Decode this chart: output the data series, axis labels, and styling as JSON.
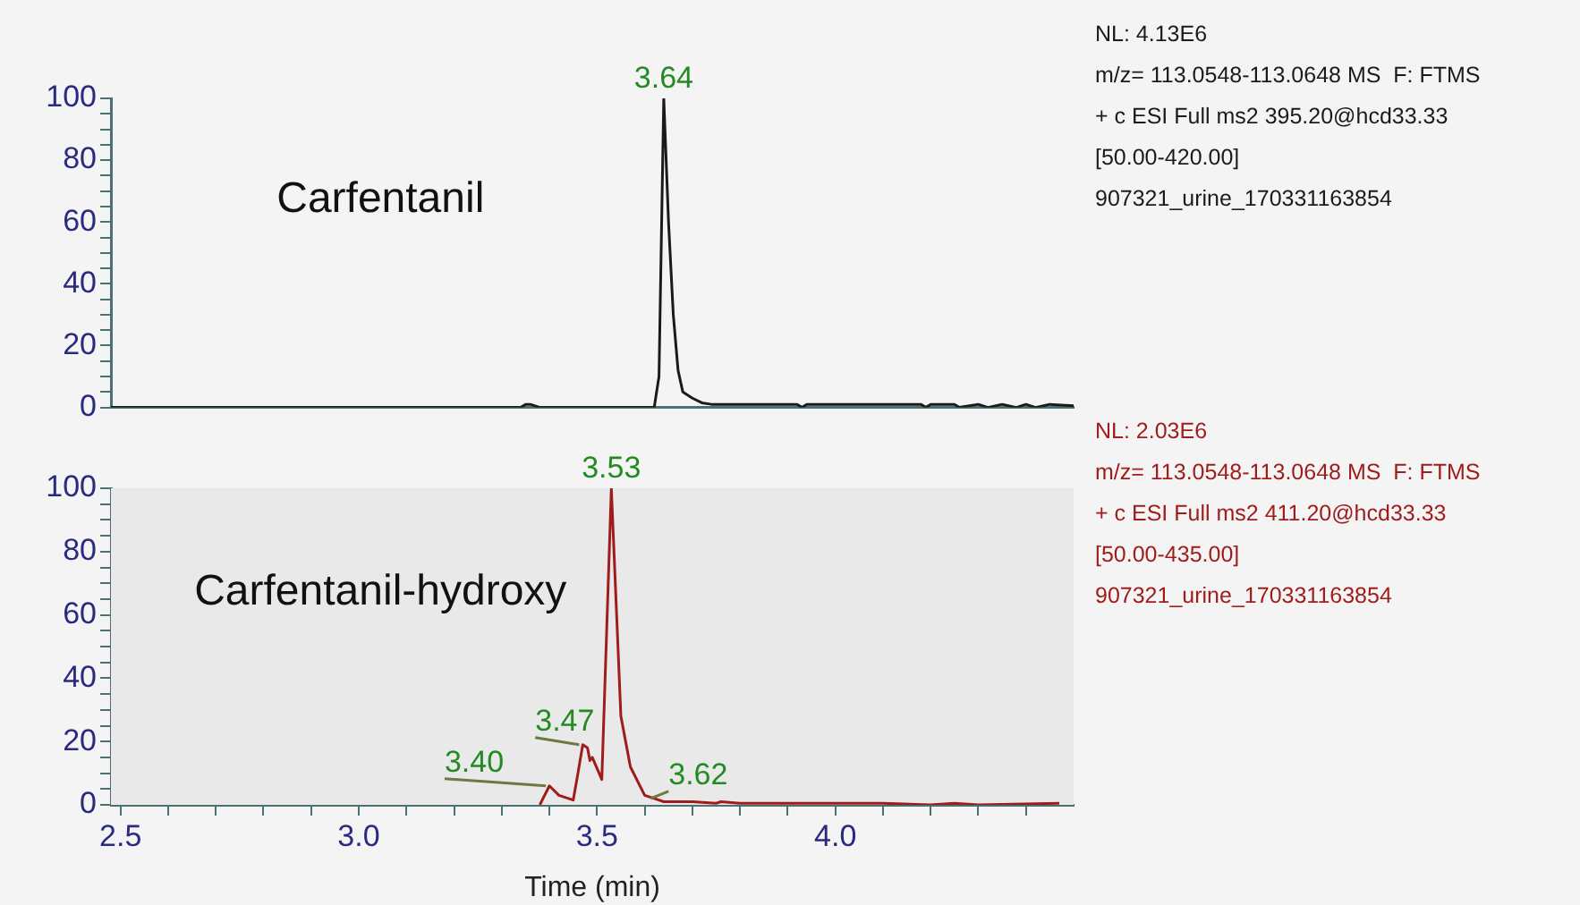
{
  "chart_data": [
    {
      "type": "line",
      "xlim": [
        2.48,
        4.5
      ],
      "ylim": [
        0,
        100
      ],
      "yticks": [
        0,
        {
          "value": 5,
          "label": null
        },
        {
          "value": 10,
          "label": null
        },
        {
          "value": 15,
          "label": null
        },
        20,
        {
          "value": 25,
          "label": null
        },
        {
          "value": 30,
          "label": null
        },
        {
          "value": 35,
          "label": null
        },
        40,
        {
          "value": 45,
          "label": null
        },
        {
          "value": 50,
          "label": null
        },
        {
          "value": 55,
          "label": null
        },
        60,
        {
          "value": 65,
          "label": null
        },
        {
          "value": 70,
          "label": null
        },
        {
          "value": 75,
          "label": null
        },
        80,
        {
          "value": 85,
          "label": null
        },
        {
          "value": 90,
          "label": null
        },
        {
          "value": 95,
          "label": null
        },
        100
      ],
      "tick_labels": "y",
      "grid": false,
      "legend": false,
      "marker": "none",
      "series": [
        {
          "name": "Carfentanil",
          "color": "#1a1a1a",
          "x": [
            2.48,
            3.34,
            3.35,
            3.36,
            3.37,
            3.38,
            3.62,
            3.63,
            3.64,
            3.65,
            3.66,
            3.67,
            3.68,
            3.7,
            3.72,
            3.74,
            3.92,
            3.93,
            3.94,
            4.18,
            4.19,
            4.2,
            4.25,
            4.26,
            4.3,
            4.32,
            4.35,
            4.38,
            4.4,
            4.42,
            4.45,
            4.5
          ],
          "values": [
            0,
            0,
            1,
            1,
            0.5,
            0,
            0,
            10,
            100,
            60,
            30,
            12,
            5,
            3,
            1.5,
            1,
            1,
            0,
            1,
            1,
            0,
            1,
            1,
            0,
            1,
            0,
            1,
            0,
            1,
            0,
            1,
            0.5
          ]
        }
      ],
      "annotations": [
        {
          "text": "3.64",
          "x": 3.64,
          "y": 100
        },
        "NL: 4.13E6",
        "m/z= 113.0548-113.0648 MS  F: FTMS",
        "+ c ESI Full ms2 395.20@hcd33.33",
        "[50.00-420.00]",
        "907321_urine_170331163854"
      ]
    },
    {
      "type": "line",
      "xlabel": "Time (min)",
      "xlim": [
        2.48,
        4.5
      ],
      "xticks": [
        2.5,
        {
          "value": 2.6,
          "label": null
        },
        {
          "value": 2.7,
          "label": null
        },
        {
          "value": 2.8,
          "label": null
        },
        {
          "value": 2.9,
          "label": null
        },
        {
          "value": 3.0,
          "label": "3.0"
        },
        {
          "value": 3.1,
          "label": null
        },
        {
          "value": 3.2,
          "label": null
        },
        {
          "value": 3.3,
          "label": null
        },
        {
          "value": 3.4,
          "label": null
        },
        3.5,
        {
          "value": 3.6,
          "label": null
        },
        {
          "value": 3.7,
          "label": null
        },
        {
          "value": 3.8,
          "label": null
        },
        {
          "value": 3.9,
          "label": null
        },
        {
          "value": 4.0,
          "label": "4.0"
        },
        {
          "value": 4.1,
          "label": null
        },
        {
          "value": 4.2,
          "label": null
        },
        {
          "value": 4.3,
          "label": null
        },
        {
          "value": 4.4,
          "label": null
        }
      ],
      "ylim": [
        0,
        100
      ],
      "yticks": [
        0,
        {
          "value": 5,
          "label": null
        },
        {
          "value": 10,
          "label": null
        },
        {
          "value": 15,
          "label": null
        },
        20,
        {
          "value": 25,
          "label": null
        },
        {
          "value": 30,
          "label": null
        },
        {
          "value": 35,
          "label": null
        },
        40,
        {
          "value": 45,
          "label": null
        },
        {
          "value": 50,
          "label": null
        },
        {
          "value": 55,
          "label": null
        },
        60,
        {
          "value": 65,
          "label": null
        },
        {
          "value": 70,
          "label": null
        },
        {
          "value": 75,
          "label": null
        },
        80,
        {
          "value": 85,
          "label": null
        },
        {
          "value": 90,
          "label": null
        },
        {
          "value": 95,
          "label": null
        },
        100
      ],
      "grid": false,
      "legend": false,
      "marker": "none",
      "series": [
        {
          "name": "Carfentanil-hydroxy",
          "color": "#a01c1c",
          "x": [
            3.38,
            3.4,
            3.42,
            3.45,
            3.46,
            3.47,
            3.48,
            3.485,
            3.49,
            3.51,
            3.53,
            3.55,
            3.57,
            3.6,
            3.62,
            3.64,
            3.7,
            3.75,
            3.76,
            3.8,
            3.9,
            3.95,
            4.0,
            4.1,
            4.2,
            4.25,
            4.3,
            4.47
          ],
          "values": [
            0,
            6,
            3,
            1.5,
            10,
            19,
            18,
            14,
            15,
            8,
            100,
            28,
            12,
            3,
            2,
            1,
            1,
            0.5,
            1,
            0.5,
            0.5,
            0.5,
            0.5,
            0.5,
            0,
            0.5,
            0,
            0.5
          ]
        }
      ],
      "annotations": [
        {
          "text": "3.53",
          "x": 3.53,
          "y": 100
        },
        {
          "text": "3.47",
          "x": 3.47,
          "y": 19
        },
        {
          "text": "3.40",
          "x": 3.4,
          "y": 6
        },
        {
          "text": "3.62",
          "x": 3.62,
          "y": 2
        },
        "NL: 2.03E6",
        "m/z= 113.0548-113.0648 MS  F: FTMS",
        "+ c ESI Full ms2 411.20@hcd33.33",
        "[50.00-435.00]",
        "907321_urine_170331163854"
      ]
    }
  ]
}
